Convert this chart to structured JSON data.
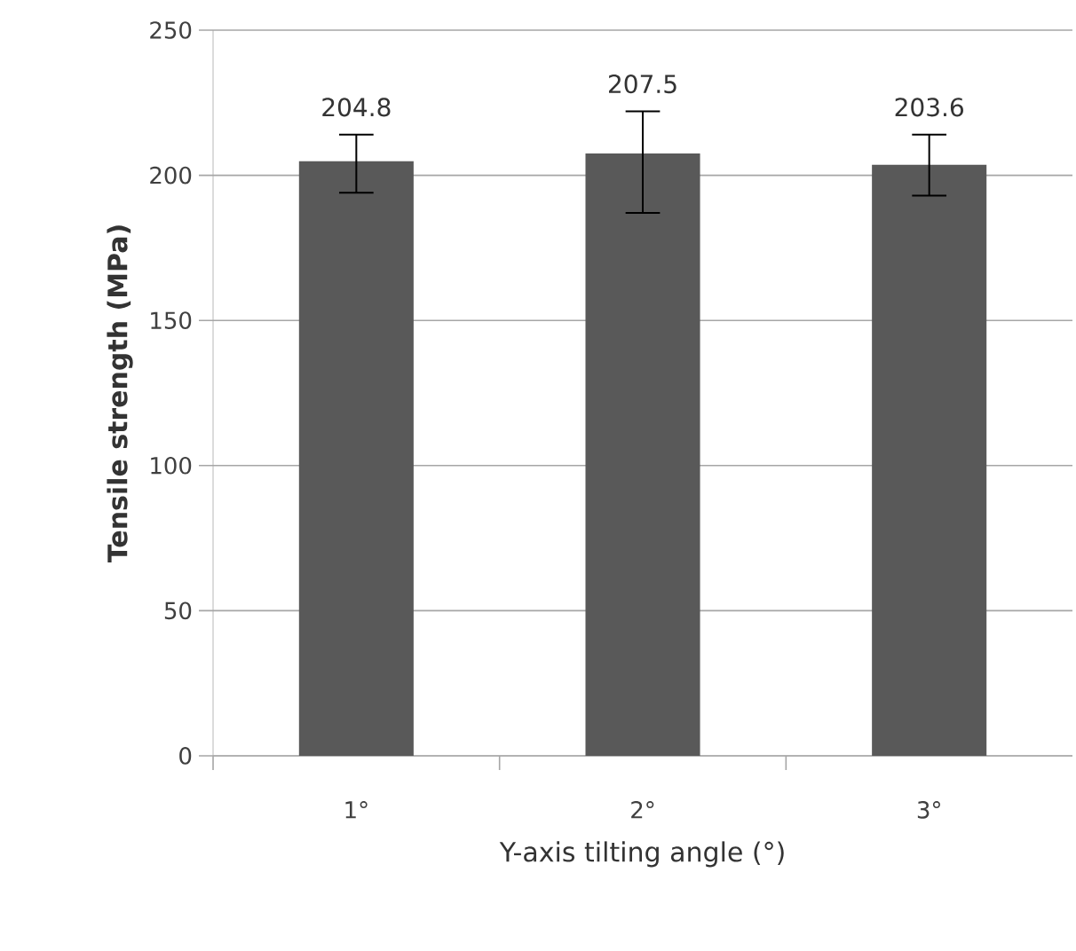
{
  "chart_data": {
    "type": "bar",
    "xlabel": "Y-axis tilting angle (°)",
    "ylabel": "Tensile strength (MPa)",
    "categories": [
      "1°",
      "2°",
      "3°"
    ],
    "values": [
      204.8,
      207.5,
      203.6
    ],
    "errors": [
      [
        194,
        214
      ],
      [
        187,
        222
      ],
      [
        193,
        214
      ]
    ],
    "color": "#595959",
    "ylim": [
      0,
      250
    ],
    "yticks": [
      0,
      50,
      100,
      150,
      200,
      250
    ],
    "grid": "y",
    "data_labels": true
  }
}
